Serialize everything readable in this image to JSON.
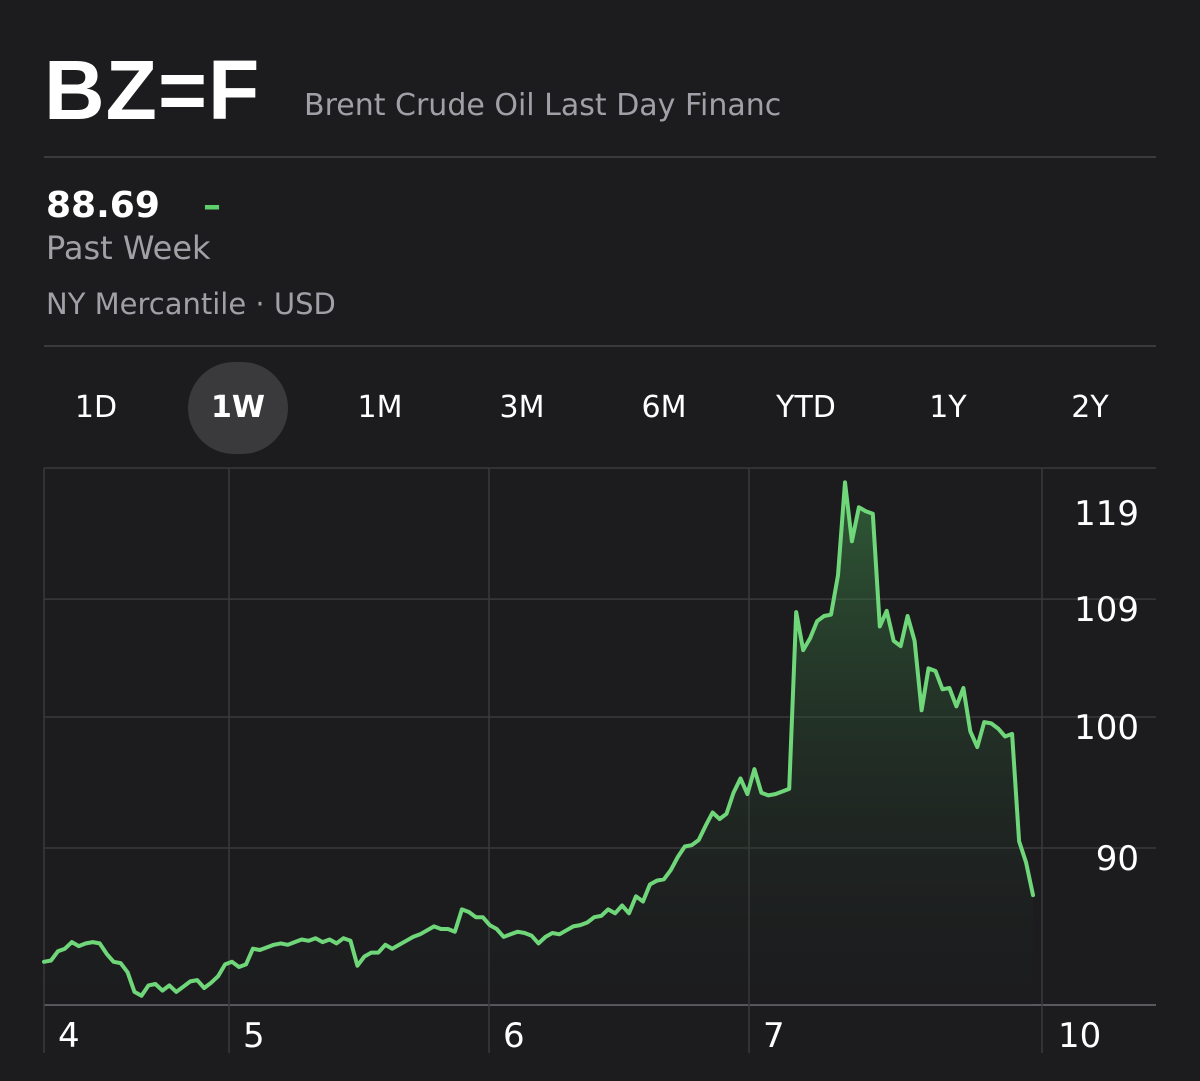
{
  "header": {
    "symbol": "BZ=F",
    "name": "Brent Crude Oil Last Day Financ"
  },
  "quote": {
    "price": "88.69",
    "change": "–",
    "period": "Past Week",
    "exchange": "NY Mercantile · USD"
  },
  "ranges": [
    {
      "label": "1D",
      "active": false
    },
    {
      "label": "1W",
      "active": true
    },
    {
      "label": "1M",
      "active": false
    },
    {
      "label": "3M",
      "active": false
    },
    {
      "label": "6M",
      "active": false
    },
    {
      "label": "YTD",
      "active": false
    },
    {
      "label": "1Y",
      "active": false
    },
    {
      "label": "2Y",
      "active": false
    }
  ],
  "colors": {
    "line": "#6fd77a",
    "grid": "#3a3a3c",
    "background": "#1c1c1e",
    "muted": "#a0a0a6"
  },
  "chart_data": {
    "type": "area",
    "x_ticks": [
      "4",
      "5",
      "6",
      "7",
      "10"
    ],
    "y_ticks": [
      90,
      100,
      109,
      119
    ],
    "ylim": [
      80.3,
      121.3
    ],
    "grid": true,
    "series": [
      {
        "values": [
          83.6,
          83.7,
          84.4,
          84.6,
          85.1,
          84.8,
          85.0,
          85.1,
          85.0,
          84.2,
          83.6,
          83.5,
          82.8,
          81.3,
          81.0,
          81.8,
          81.9,
          81.4,
          81.8,
          81.3,
          81.7,
          82.1,
          82.2,
          81.6,
          82.0,
          82.5,
          83.4,
          83.6,
          83.2,
          83.4,
          84.6,
          84.5,
          84.7,
          84.9,
          85.0,
          84.9,
          85.1,
          85.3,
          85.2,
          85.4,
          85.1,
          85.3,
          85.0,
          85.4,
          85.2,
          83.3,
          84.0,
          84.3,
          84.3,
          84.9,
          84.6,
          84.9,
          85.2,
          85.5,
          85.7,
          86.0,
          86.3,
          86.1,
          86.1,
          85.9,
          87.6,
          87.4,
          87.0,
          87.0,
          86.4,
          86.1,
          85.5,
          85.7,
          85.9,
          85.8,
          85.6,
          85.0,
          85.5,
          85.8,
          85.7,
          86.0,
          86.3,
          86.4,
          86.6,
          87.0,
          87.1,
          87.6,
          87.3,
          87.9,
          87.3,
          88.6,
          88.2,
          89.5,
          89.8,
          89.9,
          90.6,
          91.6,
          92.4,
          92.5,
          92.9,
          94.0,
          95.0,
          94.5,
          94.9,
          96.5,
          97.6,
          96.4,
          98.3,
          96.5,
          96.3,
          96.4,
          96.6,
          96.8,
          110.3,
          107.4,
          108.3,
          109.6,
          110.0,
          110.1,
          113.1,
          120.2,
          115.7,
          118.3,
          118.0,
          117.8,
          109.2,
          110.4,
          108.1,
          107.7,
          110.0,
          108.1,
          102.8,
          106.0,
          105.8,
          104.4,
          104.5,
          103.1,
          104.5,
          101.2,
          100.0,
          101.9,
          101.8,
          101.4,
          100.8,
          101.0,
          92.8,
          91.2,
          88.69
        ]
      }
    ]
  }
}
